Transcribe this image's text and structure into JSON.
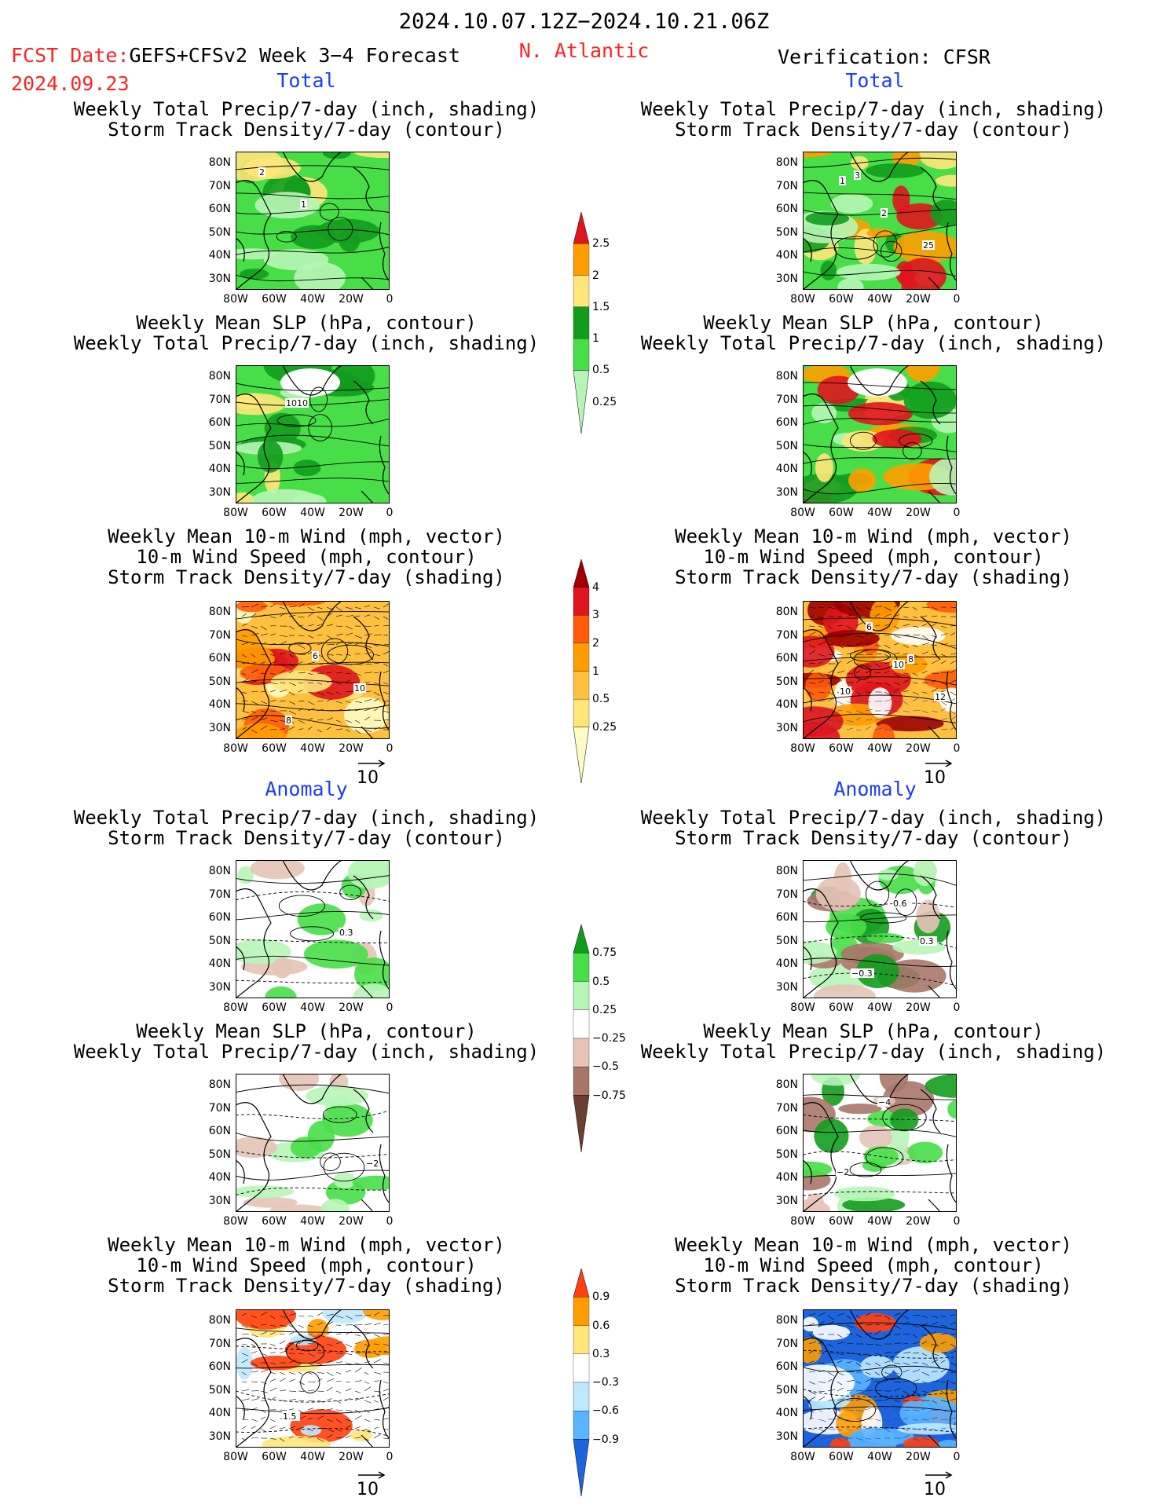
{
  "header": {
    "date_range": "2024.10.07.12Z−2024.10.21.06Z",
    "fcst_label": "FCST Date:",
    "product": "GEFS+CFSv2 Week 3−4 Forecast",
    "fcst_date": "2024.09.23",
    "region": "N. Atlantic",
    "verification": "Verification: CFSR"
  },
  "sections": {
    "total": "Total",
    "anomaly": "Anomaly"
  },
  "panel_titles": {
    "precip_track": [
      "Weekly Total Precip/7-day (inch, shading)",
      "Storm Track Density/7-day (contour)"
    ],
    "slp_precip": [
      "Weekly Mean SLP (hPa, contour)",
      "Weekly Total Precip/7-day (inch, shading)"
    ],
    "wind_track": [
      "Weekly Mean 10-m Wind (mph, vector)",
      "10-m Wind Speed (mph, contour)",
      "Storm Track Density/7-day (shading)"
    ]
  },
  "axes": {
    "lat_ticks": [
      "80N",
      "70N",
      "60N",
      "50N",
      "40N",
      "30N"
    ],
    "lon_ticks": [
      "80W",
      "60W",
      "40W",
      "20W",
      "0"
    ]
  },
  "vector_reference": "10",
  "colorbars": {
    "precip_total": {
      "labels": [
        "2.5",
        "2",
        "1.5",
        "1",
        "0.5",
        "0.25"
      ],
      "colors": [
        "#e0141e",
        "#ff9d00",
        "#ffe57a",
        "#129c1e",
        "#48de48",
        "#b7f5b7"
      ]
    },
    "track_total": {
      "labels": [
        "4",
        "3",
        "2",
        "1",
        "0.5",
        "0.25"
      ],
      "colors": [
        "#a00000",
        "#e0141e",
        "#ff5b0a",
        "#ff9d00",
        "#ffc040",
        "#ffe57a",
        "#fffbc4"
      ]
    },
    "precip_anom": {
      "labels": [
        "0.75",
        "0.5",
        "0.25",
        "−0.25",
        "−0.5",
        "−0.75"
      ],
      "colors": [
        "#129c1e",
        "#48de48",
        "#b7f5b7",
        "#ffffff",
        "#e6c3b6",
        "#a8776a",
        "#6b3f33"
      ]
    },
    "track_anom": {
      "labels": [
        "0.9",
        "0.6",
        "0.3",
        "−0.3",
        "−0.6",
        "−0.9"
      ],
      "colors": [
        "#ff4010",
        "#ff9d00",
        "#ffe57a",
        "#ffffff",
        "#bfe8ff",
        "#5ab4ff",
        "#1e64dc"
      ]
    }
  },
  "contour_labels": {
    "fc_precip_track": [
      "2",
      "1"
    ],
    "ob_precip_track": [
      "1",
      "2",
      "25",
      "3"
    ],
    "fc_slp": [
      "1010"
    ],
    "fc_wind": [
      "6",
      "10",
      "8"
    ],
    "ob_wind": [
      "10",
      "12",
      "6",
      "8",
      "10"
    ],
    "fc_anom_track": [
      "0.3"
    ],
    "ob_anom_track": [
      "0.3",
      "−0.3",
      "0.6"
    ],
    "fc_anom_slp": [
      "−2"
    ],
    "ob_anom_slp": [
      "−2",
      "−4"
    ],
    "fc_anom_wind": [
      "1.5"
    ]
  }
}
